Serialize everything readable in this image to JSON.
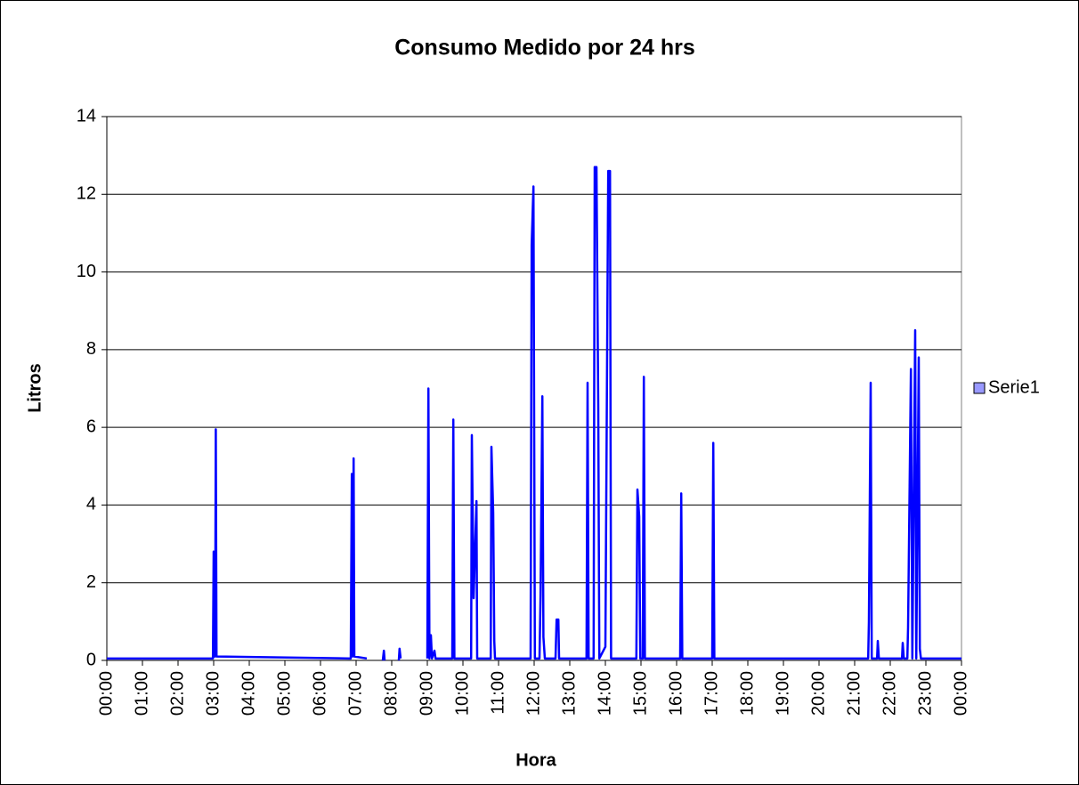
{
  "chart_data": {
    "type": "line",
    "title": "Consumo Medido por 24 hrs",
    "x_label": "Hora",
    "y_label": "Litros",
    "legend": "right",
    "grid": true,
    "xlim": [
      0,
      24
    ],
    "ylim": [
      0,
      14
    ],
    "yticks": [
      0,
      2,
      4,
      6,
      8,
      10,
      12,
      14
    ],
    "xticks": [
      {
        "value": 0,
        "label": "00:00"
      },
      {
        "value": 1,
        "label": "01:00"
      },
      {
        "value": 2,
        "label": "02:00"
      },
      {
        "value": 3,
        "label": "03:00"
      },
      {
        "value": 4,
        "label": "04:00"
      },
      {
        "value": 5,
        "label": "05:00"
      },
      {
        "value": 6,
        "label": "06:00"
      },
      {
        "value": 7,
        "label": "07:00"
      },
      {
        "value": 8,
        "label": "08:00"
      },
      {
        "value": 9,
        "label": "09:00"
      },
      {
        "value": 10,
        "label": "10:00"
      },
      {
        "value": 11,
        "label": "11:00"
      },
      {
        "value": 12,
        "label": "12:00"
      },
      {
        "value": 13,
        "label": "13:00"
      },
      {
        "value": 14,
        "label": "14:00"
      },
      {
        "value": 15,
        "label": "15:00"
      },
      {
        "value": 16,
        "label": "16:00"
      },
      {
        "value": 17,
        "label": "17:00"
      },
      {
        "value": 18,
        "label": "18:00"
      },
      {
        "value": 19,
        "label": "19:00"
      },
      {
        "value": 20,
        "label": "20:00"
      },
      {
        "value": 21,
        "label": "21:00"
      },
      {
        "value": 22,
        "label": "22:00"
      },
      {
        "value": 23,
        "label": "23:00"
      },
      {
        "value": 24,
        "label": "00:00"
      }
    ],
    "x": [
      0,
      2.98,
      3.0,
      3.02,
      3.04,
      3.06,
      3.08,
      6.85,
      6.88,
      6.9,
      6.93,
      6.95,
      7.3,
      7.35,
      7.75,
      7.78,
      7.8,
      7.85,
      8.2,
      8.22,
      8.25,
      8.3,
      9.0,
      9.03,
      9.06,
      9.1,
      9.13,
      9.2,
      9.23,
      9.7,
      9.73,
      9.76,
      10.23,
      10.25,
      10.3,
      10.38,
      10.4,
      10.78,
      10.8,
      10.85,
      10.88,
      10.9,
      11.9,
      11.93,
      11.98,
      12.02,
      12.15,
      12.18,
      12.23,
      12.26,
      12.3,
      12.6,
      12.63,
      12.68,
      12.7,
      13.47,
      13.5,
      13.53,
      13.67,
      13.7,
      13.75,
      13.8,
      13.83,
      14.0,
      14.08,
      14.13,
      14.16,
      14.87,
      14.9,
      14.95,
      14.98,
      15.05,
      15.08,
      15.11,
      16.1,
      16.13,
      16.16,
      17.0,
      17.03,
      17.06,
      21.38,
      21.4,
      21.45,
      21.48,
      21.63,
      21.65,
      21.68,
      22.33,
      22.35,
      22.38,
      22.48,
      22.5,
      22.58,
      22.62,
      22.7,
      22.73,
      22.8,
      22.83,
      22.86,
      24
    ],
    "series": [
      {
        "name": "Serie1",
        "color": "#0000ff",
        "values": [
          0.05,
          0.05,
          2.8,
          0.1,
          0.1,
          5.95,
          0.1,
          0.05,
          4.8,
          0.1,
          5.2,
          0.1,
          0.05,
          null,
          0,
          0.25,
          0,
          null,
          0,
          0.3,
          0.05,
          null,
          0.05,
          7.0,
          0.05,
          0.65,
          0.05,
          0.25,
          0.05,
          0.05,
          6.2,
          0.05,
          0.05,
          5.8,
          1.6,
          4.1,
          0.05,
          0.05,
          5.5,
          3.8,
          0.5,
          0.05,
          0.05,
          10.7,
          12.2,
          0.05,
          0.05,
          1.7,
          6.8,
          0.6,
          0.05,
          0.05,
          1.05,
          1.05,
          0.05,
          0.05,
          7.15,
          0.05,
          0.05,
          12.7,
          12.7,
          6.5,
          0.05,
          0.35,
          12.6,
          12.6,
          0.05,
          0.05,
          4.4,
          3.7,
          0.05,
          0.05,
          7.3,
          0.05,
          0.05,
          4.3,
          0.05,
          0.05,
          5.6,
          0.05,
          0.05,
          1.0,
          7.15,
          0.05,
          0.05,
          0.5,
          0.05,
          0.05,
          0.45,
          0.05,
          0.05,
          0.85,
          7.5,
          0.05,
          8.5,
          0.05,
          7.8,
          0.3,
          0.05,
          0.05
        ]
      }
    ]
  }
}
